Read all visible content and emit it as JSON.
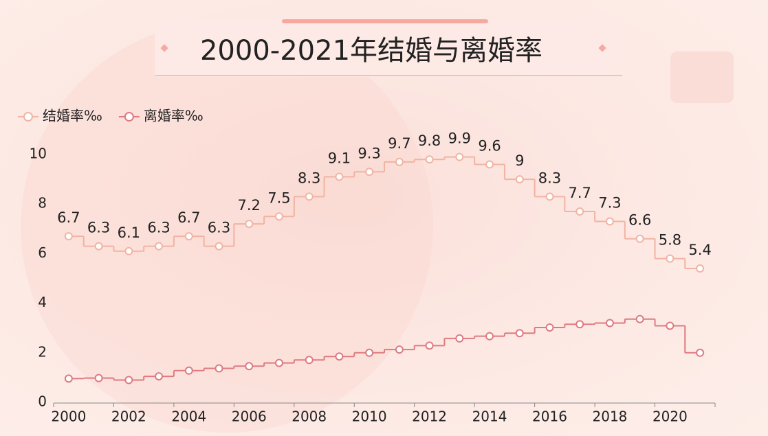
{
  "chart_data": {
    "type": "step-line",
    "title": "2000-2021年结婚与离婚率",
    "categories": [
      "2000",
      null,
      "2002",
      null,
      "2004",
      null,
      "2006",
      null,
      "2008",
      null,
      "2010",
      null,
      "2012",
      null,
      "2014",
      null,
      "2016",
      null,
      "2018",
      null,
      "2020",
      null
    ],
    "series": [
      {
        "name": "结婚率‰",
        "color": "#f2b3a2",
        "show_labels": true,
        "values": [
          6.7,
          6.3,
          6.1,
          6.3,
          6.7,
          6.3,
          7.2,
          7.5,
          8.3,
          9.1,
          9.3,
          9.7,
          9.8,
          9.9,
          9.6,
          9,
          8.3,
          7.7,
          7.3,
          6.6,
          5.8,
          5.4
        ]
      },
      {
        "name": "离婚率‰",
        "color": "#de7a80",
        "show_labels": false,
        "values": [
          0.96,
          0.98,
          0.9,
          1.05,
          1.28,
          1.37,
          1.46,
          1.59,
          1.71,
          1.85,
          2.0,
          2.13,
          2.29,
          2.58,
          2.67,
          2.79,
          3.02,
          3.15,
          3.2,
          3.36,
          3.09,
          2.0
        ]
      }
    ],
    "ylim": [
      0,
      10
    ],
    "yticks": [
      0,
      2,
      4,
      6,
      8,
      10
    ],
    "grid": false,
    "legend": "top-left"
  }
}
